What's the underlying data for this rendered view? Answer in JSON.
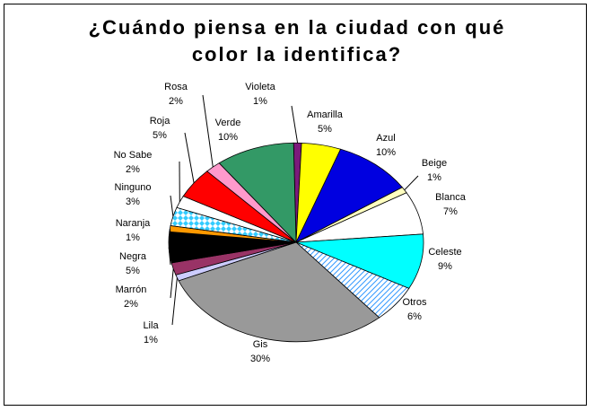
{
  "chart_data": {
    "type": "pie",
    "title_line1": "¿Cuándo piensa en la ciudad con qué",
    "title_line2": "color la identifica?",
    "slices": [
      {
        "label": "Violeta",
        "pct": "1%",
        "value": 1,
        "color": "#7b1a7b",
        "pattern": "solid"
      },
      {
        "label": "Amarilla",
        "pct": "5%",
        "value": 5,
        "color": "#ffff00",
        "pattern": "solid"
      },
      {
        "label": "Azul",
        "pct": "10%",
        "value": 10,
        "color": "#0000e0",
        "pattern": "solid"
      },
      {
        "label": "Beige",
        "pct": "1%",
        "value": 1,
        "color": "#ffffc0",
        "pattern": "solid"
      },
      {
        "label": "Blanca",
        "pct": "7%",
        "value": 7,
        "color": "#ffffff",
        "pattern": "solid"
      },
      {
        "label": "Celeste",
        "pct": "9%",
        "value": 9,
        "color": "#00ffff",
        "pattern": "solid"
      },
      {
        "label": "Otros",
        "pct": "6%",
        "value": 6,
        "color": "#3399ff",
        "pattern": "stripes"
      },
      {
        "label": "Gis",
        "pct": "30%",
        "value": 30,
        "color": "#999999",
        "pattern": "solid"
      },
      {
        "label": "Lila",
        "pct": "1%",
        "value": 1,
        "color": "#ccccff",
        "pattern": "solid"
      },
      {
        "label": "Marrón",
        "pct": "2%",
        "value": 2,
        "color": "#993366",
        "pattern": "solid"
      },
      {
        "label": "Negra",
        "pct": "5%",
        "value": 5,
        "color": "#000000",
        "pattern": "solid"
      },
      {
        "label": "Naranja",
        "pct": "1%",
        "value": 1,
        "color": "#ff9900",
        "pattern": "solid"
      },
      {
        "label": "Ninguno",
        "pct": "3%",
        "value": 3,
        "color": "#33ccff",
        "pattern": "checker"
      },
      {
        "label": "No Sabe",
        "pct": "2%",
        "value": 2,
        "color": "#ffffff",
        "pattern": "solid"
      },
      {
        "label": "Roja",
        "pct": "5%",
        "value": 5,
        "color": "#ff0000",
        "pattern": "solid"
      },
      {
        "label": "Rosa",
        "pct": "2%",
        "value": 2,
        "color": "#ff99cc",
        "pattern": "solid"
      },
      {
        "label": "Verde",
        "pct": "10%",
        "value": 10,
        "color": "#339966",
        "pattern": "solid"
      }
    ]
  }
}
